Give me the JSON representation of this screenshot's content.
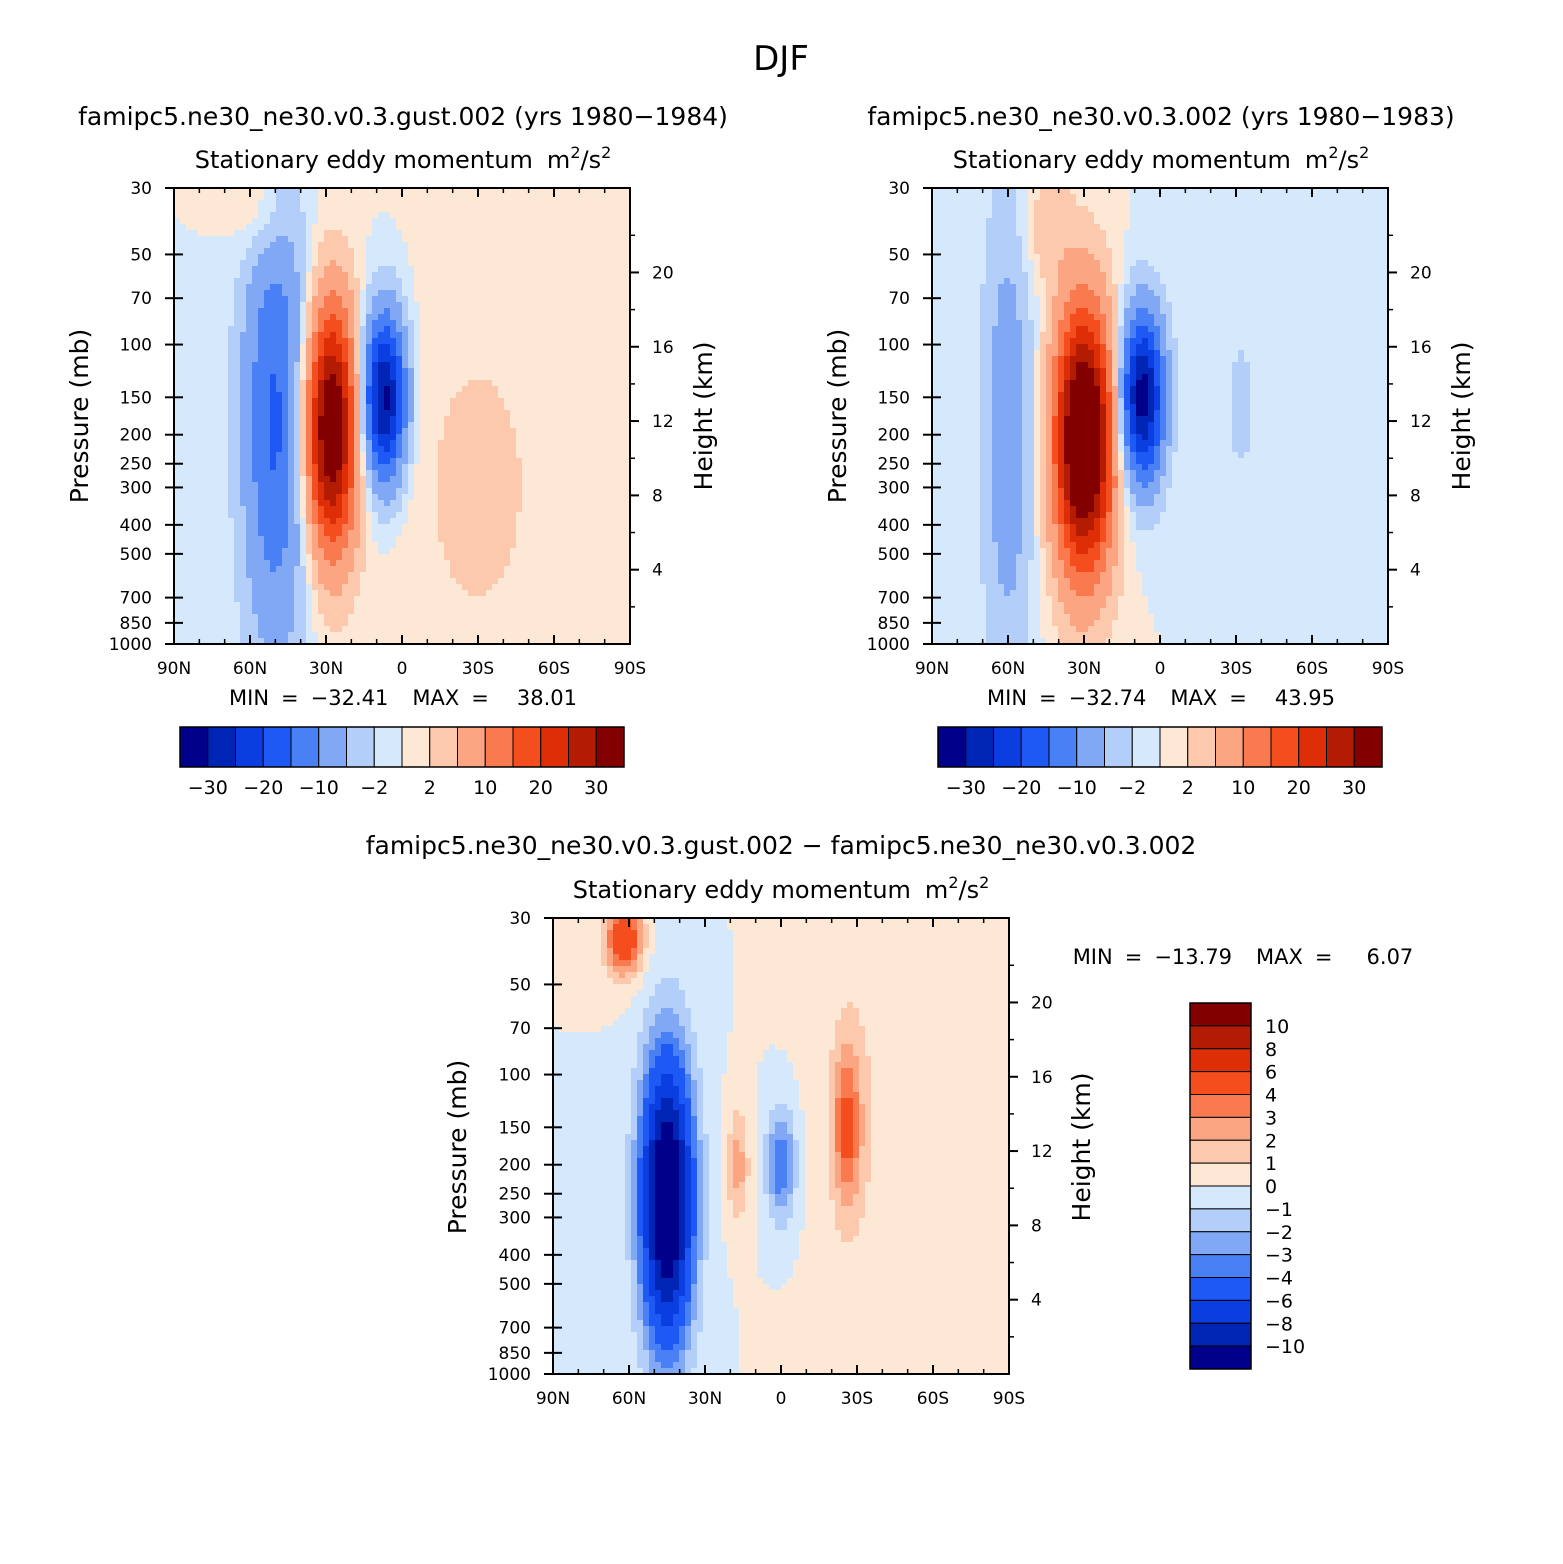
{
  "figure_title": "DJF",
  "palettes": {
    "panel": [
      "#00008a",
      "#0024b4",
      "#0b3ee0",
      "#1e58f5",
      "#4a80f6",
      "#80a8f5",
      "#b4cefa",
      "#d6e8fc",
      "#fde8d6",
      "#fcc9ad",
      "#fba583",
      "#fa7a50",
      "#f44e1e",
      "#de2e08",
      "#b31c02",
      "#820000"
    ],
    "diff": [
      "#00008a",
      "#0024b4",
      "#0b3ee0",
      "#1e58f5",
      "#4a80f6",
      "#80a8f5",
      "#b4cefa",
      "#d6e8fc",
      "#fde8d6",
      "#fcc9ad",
      "#fba583",
      "#fa7a50",
      "#f44e1e",
      "#de2e08",
      "#b31c02",
      "#820000"
    ]
  },
  "chart_data": [
    {
      "type": "heatmap",
      "title": "famipc5.ne30_ne30.v0.3.gust.002 (yrs 1980−1984)",
      "subtitle_left": "Stationary eddy momentum",
      "units_base": "m",
      "units_mid": "/s",
      "units_sup": "2",
      "ylabel": "Pressure (mb)",
      "y2label": "Height (km)",
      "x_ticks": [
        "90N",
        "60N",
        "30N",
        "0",
        "30S",
        "60S",
        "90S"
      ],
      "y_ticks": [
        "30",
        "50",
        "70",
        "100",
        "150",
        "200",
        "250",
        "300",
        "400",
        "500",
        "700",
        "850",
        "1000"
      ],
      "y_tick_values": [
        30,
        50,
        70,
        100,
        150,
        200,
        250,
        300,
        400,
        500,
        700,
        850,
        1000
      ],
      "y2_ticks": [
        "20",
        "16",
        "12",
        "8",
        "4"
      ],
      "y2_tick_values": [
        20,
        16,
        12,
        8,
        4
      ],
      "min_label": "MIN",
      "min_value": "−32.41",
      "max_label": "MAX",
      "max_value": "38.01",
      "colorbar_labels": [
        "−30",
        "−20",
        "−10",
        "−2",
        "2",
        "10",
        "20",
        "30"
      ],
      "features": [
        {
          "lat": 50,
          "p": 180,
          "amp": -16,
          "wlat": 9,
          "wz": 2.4
        },
        {
          "lat": 28,
          "p": 190,
          "amp": 38,
          "wlat": 7,
          "wz": 1.3
        },
        {
          "lat": 7,
          "p": 150,
          "amp": -32,
          "wlat": 6,
          "wz": 0.9
        },
        {
          "lat": -30,
          "p": 300,
          "amp": 2.5,
          "wlat": 25,
          "wz": 2.5
        },
        {
          "lat": 55,
          "p": 35,
          "amp": 5,
          "wlat": 8,
          "wz": 0.6
        }
      ]
    },
    {
      "type": "heatmap",
      "title": "famipc5.ne30_ne30.v0.3.002 (yrs 1980−1983)",
      "subtitle_left": "Stationary eddy momentum",
      "units_base": "m",
      "units_mid": "/s",
      "units_sup": "2",
      "ylabel": "Pressure (mb)",
      "y2label": "Height (km)",
      "x_ticks": [
        "90N",
        "60N",
        "30N",
        "0",
        "30S",
        "60S",
        "90S"
      ],
      "y_ticks": [
        "30",
        "50",
        "70",
        "100",
        "150",
        "200",
        "250",
        "300",
        "400",
        "500",
        "700",
        "850",
        "1000"
      ],
      "y_tick_values": [
        30,
        50,
        70,
        100,
        150,
        200,
        250,
        300,
        400,
        500,
        700,
        850,
        1000
      ],
      "y2_ticks": [
        "20",
        "16",
        "12",
        "8",
        "4"
      ],
      "y2_tick_values": [
        20,
        16,
        12,
        8,
        4
      ],
      "min_label": "MIN",
      "min_value": "−32.74",
      "max_label": "MAX",
      "max_value": "43.95",
      "colorbar_labels": [
        "−30",
        "−20",
        "−10",
        "−2",
        "2",
        "10",
        "20",
        "30"
      ],
      "features": [
        {
          "lat": 60,
          "p": 200,
          "amp": -8,
          "wlat": 7,
          "wz": 2.6
        },
        {
          "lat": 30,
          "p": 210,
          "amp": 44,
          "wlat": 8,
          "wz": 1.4
        },
        {
          "lat": 7,
          "p": 150,
          "amp": -33,
          "wlat": 6,
          "wz": 0.9
        },
        {
          "lat": -32,
          "p": 160,
          "amp": -3,
          "wlat": 5,
          "wz": 0.9
        },
        {
          "lat": 45,
          "p": 40,
          "amp": 4,
          "wlat": 7,
          "wz": 0.6
        }
      ]
    },
    {
      "type": "heatmap",
      "title": "famipc5.ne30_ne30.v0.3.gust.002 − famipc5.ne30_ne30.v0.3.002",
      "subtitle_left": "Stationary eddy momentum",
      "units_base": "m",
      "units_mid": "/s",
      "units_sup": "2",
      "ylabel": "Pressure (mb)",
      "y2label": "Height (km)",
      "x_ticks": [
        "90N",
        "60N",
        "30N",
        "0",
        "30S",
        "60S",
        "90S"
      ],
      "y_ticks": [
        "30",
        "50",
        "70",
        "100",
        "150",
        "200",
        "250",
        "300",
        "400",
        "500",
        "700",
        "850",
        "1000"
      ],
      "y_tick_values": [
        30,
        50,
        70,
        100,
        150,
        200,
        250,
        300,
        400,
        500,
        700,
        850,
        1000
      ],
      "y2_ticks": [
        "20",
        "16",
        "12",
        "8",
        "4"
      ],
      "y2_tick_values": [
        20,
        16,
        12,
        8,
        4
      ],
      "min_label": "MIN",
      "min_value": "−13.79",
      "max_label": "MAX",
      "max_value": "6.07",
      "colorbar_labels": [
        "10",
        "8",
        "6",
        "4",
        "3",
        "2",
        "1",
        "0",
        "−1",
        "−2",
        "−3",
        "−4",
        "−6",
        "−8",
        "−10"
      ],
      "features": [
        {
          "lat": 45,
          "p": 260,
          "amp": -13.8,
          "wlat": 7,
          "wz": 1.5
        },
        {
          "lat": 62,
          "p": 35,
          "amp": 6,
          "wlat": 5,
          "wz": 0.4
        },
        {
          "lat": 17,
          "p": 200,
          "amp": 2.5,
          "wlat": 3,
          "wz": 0.6
        },
        {
          "lat": 0,
          "p": 200,
          "amp": -4,
          "wlat": 4,
          "wz": 0.6
        },
        {
          "lat": -26,
          "p": 150,
          "amp": 4,
          "wlat": 4,
          "wz": 0.9
        },
        {
          "lat": -35,
          "p": 120,
          "amp": 0.8,
          "wlat": 15,
          "wz": 2.5
        }
      ]
    }
  ]
}
